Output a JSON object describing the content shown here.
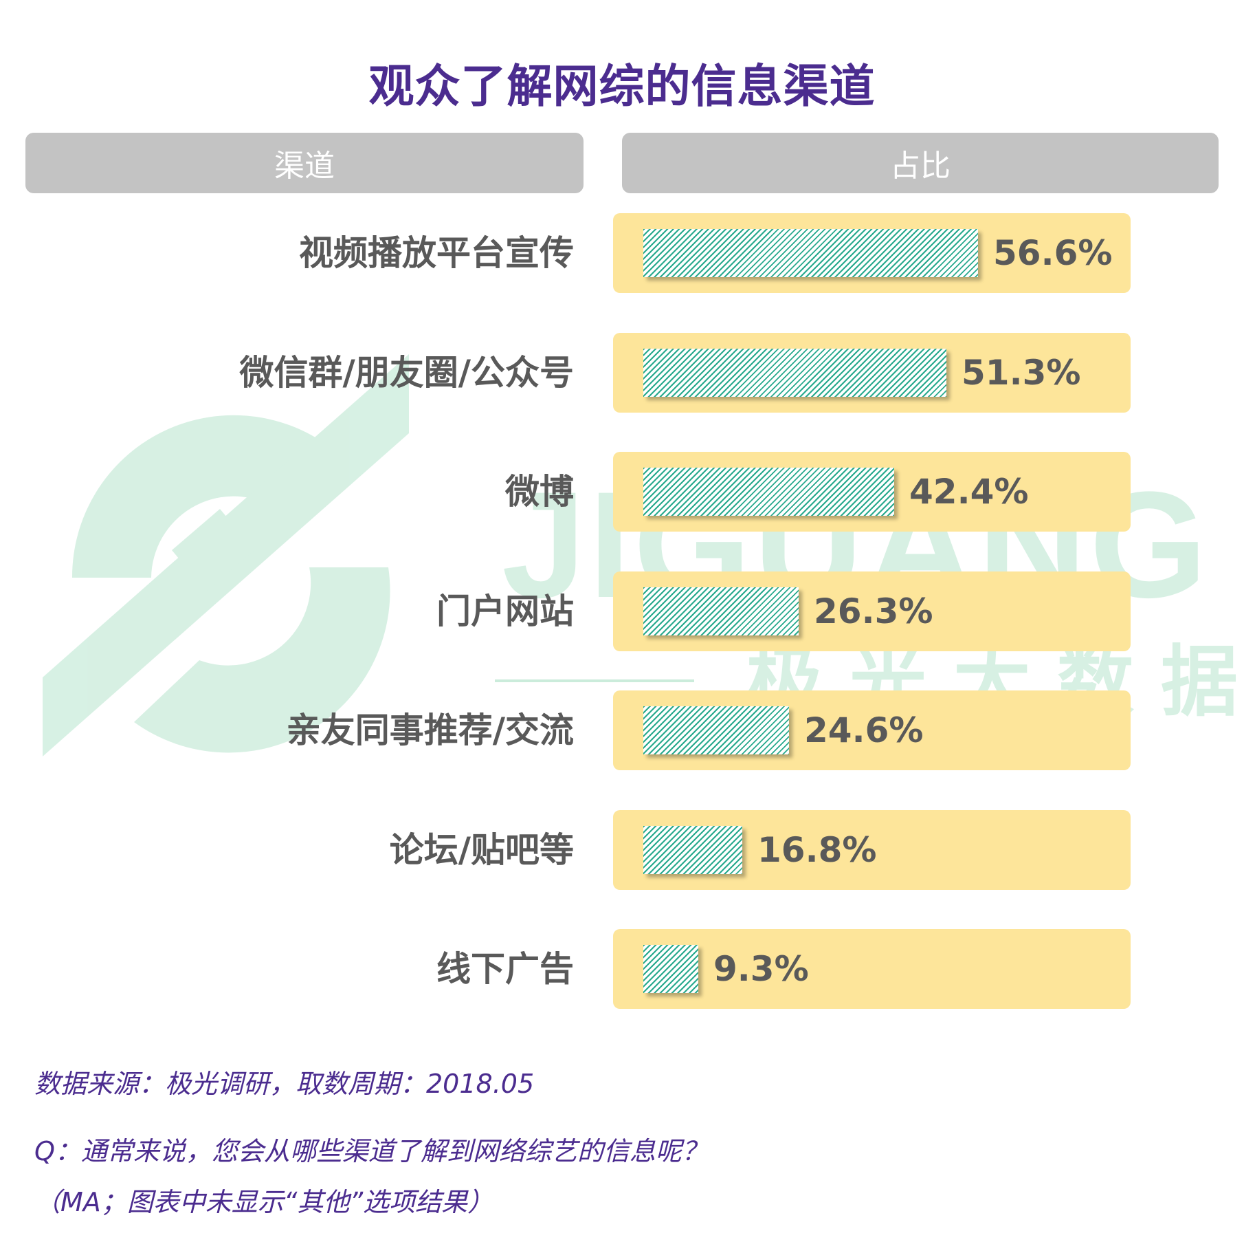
{
  "title": "观众了解网综的信息渠道",
  "header": {
    "channel": "渠道",
    "share": "占比"
  },
  "watermark": {
    "brand": "JIGUANG",
    "brand_cn": "极 光 大 数 据"
  },
  "chart_data": {
    "type": "bar",
    "orientation": "horizontal",
    "title": "观众了解网综的信息渠道",
    "categories": [
      "视频播放平台宣传",
      "微信群/朋友圈/公众号",
      "微博",
      "门户网站",
      "亲友同事推荐/交流",
      "论坛/贴吧等",
      "线下广告"
    ],
    "values": [
      56.6,
      51.3,
      42.4,
      26.3,
      24.6,
      16.8,
      9.3
    ],
    "labels": [
      "56.6%",
      "51.3%",
      "42.4%",
      "26.3%",
      "24.6%",
      "16.8%",
      "9.3%"
    ],
    "unit": "%",
    "xlim": [
      0,
      100
    ]
  },
  "notes": [
    "数据来源：极光调研，取数周期：2018.05",
    "Q：通常来说，您会从哪些渠道了解到网络综艺的信息呢？",
    "（MA；图表中未显示“其他”选项结果）"
  ],
  "colors": {
    "title": "#4b2c8f",
    "header_bg": "#c3c3c3",
    "row_bg": "#fde59a",
    "bar_hatch": "#27a98d",
    "text": "#595959",
    "watermark": "#bfe8d3"
  }
}
